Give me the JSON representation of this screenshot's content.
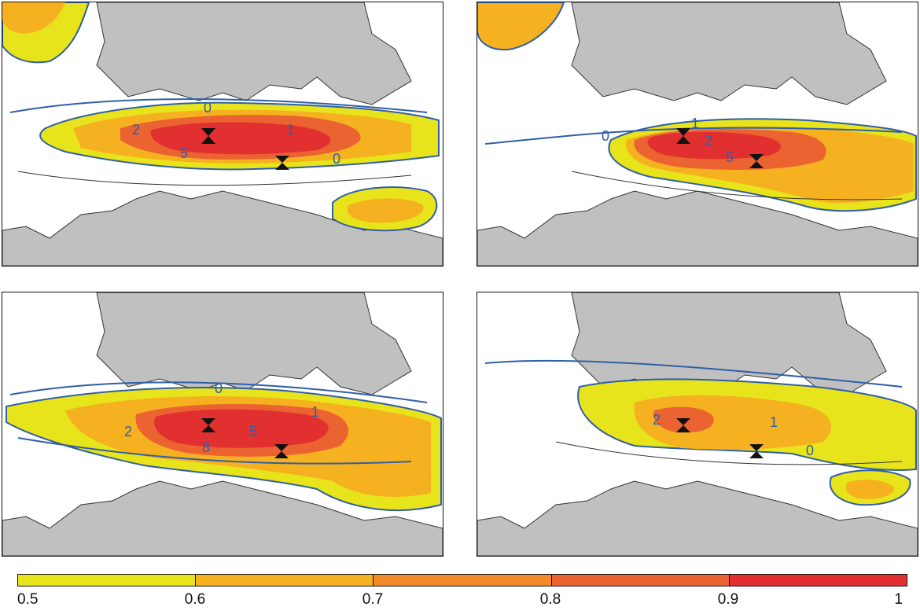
{
  "colors": {
    "land": "#c0c0c0",
    "sea": "#ffffff",
    "contour_blue": "#2f5fa6",
    "contour_black": "#333333",
    "marker": "#111111"
  },
  "colorbar": {
    "ticks": [
      "0.5",
      "0.6",
      "0.7",
      "0.8",
      "0.9",
      "1"
    ],
    "colors": [
      "#e8e41c",
      "#f5b120",
      "#f08a2a",
      "#ec6332",
      "#e23030"
    ]
  },
  "panels": [
    {
      "labels": [
        "0",
        "2",
        "1",
        "5",
        "0"
      ],
      "level_peak": 0.95
    },
    {
      "labels": [
        "1",
        "0",
        "2",
        "5"
      ],
      "level_peak": 0.9
    },
    {
      "labels": [
        "0",
        "1",
        "2",
        "5",
        "8"
      ],
      "level_peak": 0.95
    },
    {
      "labels": [
        "2",
        "1",
        "0"
      ],
      "level_peak": 0.75
    }
  ],
  "icons": {
    "marker": "hourglass-marker-icon",
    "land": "landmass-shape"
  }
}
